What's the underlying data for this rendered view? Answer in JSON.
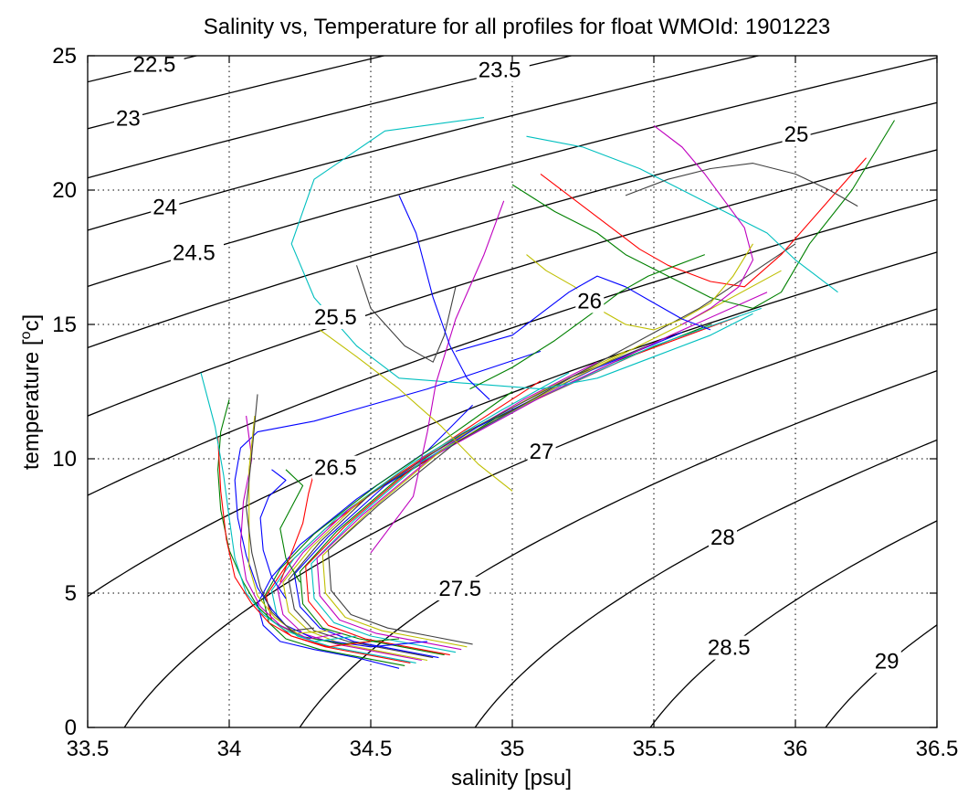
{
  "chart_data": {
    "type": "line",
    "title": "Salinity vs, Temperature for all profiles for float WMOId: 1901223",
    "xlabel": "salinity [psu]",
    "ylabel_parts": {
      "before": "temperature [",
      "sup": "o",
      "after": "c]"
    },
    "xlim": [
      33.5,
      36.5
    ],
    "ylim": [
      0,
      25
    ],
    "xticks": [
      33.5,
      34,
      34.5,
      35,
      35.5,
      36,
      36.5
    ],
    "xtick_labels": [
      "33.5",
      "34",
      "34.5",
      "35",
      "35.5",
      "36",
      "36.5"
    ],
    "yticks": [
      0,
      5,
      10,
      15,
      20,
      25
    ],
    "ytick_labels": [
      "0",
      "5",
      "10",
      "15",
      "20",
      "25"
    ],
    "grid": true,
    "contours": {
      "kind": "sigma0 density isolines",
      "levels": [
        22.5,
        23,
        23.5,
        24,
        24.5,
        25,
        25.5,
        26,
        26.5,
        27,
        27.5,
        28,
        28.5,
        29
      ],
      "labels": [
        {
          "text": "22.5",
          "s": 33.66,
          "t": 24.4
        },
        {
          "text": "23",
          "s": 33.6,
          "t": 22.4
        },
        {
          "text": "23.5",
          "s": 34.88,
          "t": 24.2
        },
        {
          "text": "24",
          "s": 33.73,
          "t": 19.1
        },
        {
          "text": "24.5",
          "s": 33.8,
          "t": 17.4
        },
        {
          "text": "25",
          "s": 35.96,
          "t": 21.8
        },
        {
          "text": "25.5",
          "s": 34.3,
          "t": 15.0
        },
        {
          "text": "26",
          "s": 35.23,
          "t": 15.6
        },
        {
          "text": "26.5",
          "s": 34.3,
          "t": 9.4
        },
        {
          "text": "27",
          "s": 35.06,
          "t": 10.0
        },
        {
          "text": "27.5",
          "s": 34.74,
          "t": 4.9
        },
        {
          "text": "28",
          "s": 35.7,
          "t": 6.8
        },
        {
          "text": "28.5",
          "s": 35.69,
          "t": 2.7
        },
        {
          "text": "29",
          "s": 36.28,
          "t": 2.2
        }
      ]
    },
    "series_colors": [
      "#0000ff",
      "#008000",
      "#ff0000",
      "#00bfbf",
      "#bf00bf",
      "#bfbf00",
      "#404040"
    ],
    "series": [
      {
        "x": [
          34.6,
          34.45,
          34.3,
          34.18,
          34.12,
          34.1,
          34.15,
          34.25,
          34.45,
          34.7,
          34.86
        ],
        "y": [
          2.2,
          2.6,
          2.9,
          3.2,
          3.8,
          4.6,
          5.6,
          6.8,
          8.5,
          10.3,
          12.0
        ]
      },
      {
        "x": [
          34.62,
          34.47,
          34.32,
          34.2,
          34.14,
          34.12,
          34.18,
          34.3,
          34.52,
          34.8,
          35.0
        ],
        "y": [
          2.3,
          2.6,
          2.9,
          3.3,
          3.9,
          4.8,
          5.9,
          7.2,
          9.0,
          11.0,
          12.5
        ]
      },
      {
        "x": [
          34.64,
          34.49,
          34.34,
          34.22,
          34.15,
          34.13,
          34.2,
          34.34,
          34.58,
          34.88,
          35.1
        ],
        "y": [
          2.4,
          2.7,
          3.0,
          3.4,
          4.0,
          4.9,
          6.0,
          7.4,
          9.3,
          11.4,
          12.9
        ]
      },
      {
        "x": [
          34.66,
          34.51,
          34.36,
          34.24,
          34.17,
          34.15,
          34.23,
          34.38,
          34.64,
          34.96,
          35.2
        ],
        "y": [
          2.4,
          2.7,
          3.0,
          3.4,
          4.1,
          5.1,
          6.3,
          7.8,
          9.8,
          11.8,
          13.2
        ]
      },
      {
        "x": [
          34.68,
          34.53,
          34.38,
          34.26,
          34.19,
          34.17,
          34.26,
          34.42,
          34.7,
          35.04,
          35.3
        ],
        "y": [
          2.5,
          2.8,
          3.1,
          3.5,
          4.2,
          5.2,
          6.5,
          8.1,
          10.1,
          12.2,
          13.6
        ]
      },
      {
        "x": [
          34.7,
          34.55,
          34.4,
          34.28,
          34.21,
          34.19,
          34.29,
          34.46,
          34.76,
          35.12,
          35.4
        ],
        "y": [
          2.5,
          2.8,
          3.1,
          3.6,
          4.3,
          5.4,
          6.7,
          8.4,
          10.5,
          12.6,
          14.0
        ]
      },
      {
        "x": [
          34.72,
          34.57,
          34.42,
          34.3,
          34.23,
          34.21,
          34.32,
          34.5,
          34.82,
          35.2,
          35.5
        ],
        "y": [
          2.6,
          2.9,
          3.2,
          3.6,
          4.4,
          5.5,
          6.9,
          8.7,
          10.9,
          13.0,
          14.3
        ]
      },
      {
        "x": [
          34.74,
          34.59,
          34.44,
          34.32,
          34.25,
          34.23,
          34.35,
          34.55,
          34.88,
          35.28,
          35.6
        ],
        "y": [
          2.6,
          2.9,
          3.2,
          3.7,
          4.5,
          5.7,
          7.1,
          9.0,
          11.2,
          13.3,
          14.7
        ]
      },
      {
        "x": [
          34.76,
          34.61,
          34.46,
          34.33,
          34.26,
          34.25,
          34.38,
          34.6,
          34.94,
          35.36,
          35.7
        ],
        "y": [
          2.7,
          3.0,
          3.3,
          3.7,
          4.6,
          5.8,
          7.3,
          9.3,
          11.5,
          13.6,
          15.0
        ]
      },
      {
        "x": [
          34.78,
          34.63,
          34.48,
          34.35,
          34.28,
          34.27,
          34.41,
          34.64,
          35.0,
          35.44,
          35.8
        ],
        "y": [
          2.7,
          3.0,
          3.3,
          3.8,
          4.7,
          6.0,
          7.5,
          9.6,
          11.8,
          13.9,
          15.3
        ]
      },
      {
        "x": [
          34.8,
          34.65,
          34.5,
          34.37,
          34.3,
          34.29,
          34.44,
          34.68,
          35.06,
          35.5,
          35.88
        ],
        "y": [
          2.8,
          3.1,
          3.4,
          3.9,
          4.8,
          6.1,
          7.7,
          9.9,
          12.1,
          14.2,
          15.6
        ]
      },
      {
        "x": [
          34.82,
          34.67,
          34.52,
          34.39,
          34.32,
          34.31,
          34.47,
          34.72,
          35.12,
          35.56,
          35.9
        ],
        "y": [
          2.9,
          3.2,
          3.5,
          4.0,
          4.9,
          6.3,
          7.9,
          10.1,
          12.4,
          14.6,
          16.2
        ]
      },
      {
        "x": [
          34.84,
          34.69,
          34.54,
          34.41,
          34.34,
          34.33,
          34.5,
          34.76,
          35.18,
          35.6,
          35.95
        ],
        "y": [
          3.0,
          3.3,
          3.6,
          4.1,
          5.0,
          6.4,
          8.1,
          10.4,
          12.8,
          15.0,
          17.0
        ]
      },
      {
        "x": [
          34.86,
          34.71,
          34.56,
          34.43,
          34.36,
          34.35,
          34.53,
          34.8,
          35.22,
          35.66,
          36.0
        ],
        "y": [
          3.1,
          3.4,
          3.7,
          4.2,
          5.1,
          6.6,
          8.3,
          10.6,
          13.1,
          15.6,
          18.0
        ]
      },
      {
        "x": [
          34.7,
          34.5,
          34.3,
          34.2,
          34.15,
          34.1,
          34.06,
          34.03,
          34.02,
          34.04,
          34.1,
          34.3,
          34.7,
          35.1
        ],
        "y": [
          3.2,
          3.0,
          3.3,
          3.8,
          4.4,
          5.2,
          6.4,
          7.8,
          9.2,
          10.4,
          11.0,
          11.4,
          12.6,
          14.0
        ]
      },
      {
        "x": [
          34.6,
          34.4,
          34.25,
          34.16,
          34.1,
          34.05,
          34.0,
          33.97,
          33.96,
          33.97,
          34.0
        ],
        "y": [
          3.3,
          3.1,
          3.4,
          3.9,
          4.5,
          5.4,
          6.6,
          8.1,
          9.6,
          11.0,
          12.2
        ]
      },
      {
        "x": [
          34.5,
          34.35,
          34.22,
          34.14,
          34.08,
          34.02,
          33.99,
          33.97,
          33.96
        ],
        "y": [
          3.2,
          3.0,
          3.4,
          3.9,
          4.6,
          5.6,
          7.0,
          8.8,
          10.8
        ]
      },
      {
        "x": [
          34.45,
          34.3,
          34.2,
          34.12,
          34.06,
          34.02,
          34.0,
          33.98,
          33.95,
          33.9
        ],
        "y": [
          3.4,
          3.2,
          3.6,
          4.2,
          5.0,
          6.3,
          7.8,
          9.4,
          11.2,
          13.2
        ]
      },
      {
        "x": [
          34.4,
          34.28,
          34.18,
          34.11,
          34.06,
          34.04,
          34.05,
          34.08,
          34.06
        ],
        "y": [
          3.5,
          3.3,
          3.8,
          4.5,
          5.5,
          6.8,
          8.4,
          10.0,
          11.6
        ]
      },
      {
        "x": [
          34.35,
          34.24,
          34.16,
          34.1,
          34.07,
          34.07,
          34.07,
          34.09
        ],
        "y": [
          3.6,
          3.5,
          4.1,
          4.9,
          6.0,
          7.6,
          9.6,
          11.6
        ]
      },
      {
        "x": [
          34.3,
          34.22,
          34.15,
          34.11,
          34.08,
          34.06,
          34.08,
          34.1
        ],
        "y": [
          3.7,
          3.6,
          4.3,
          5.2,
          6.5,
          8.2,
          10.2,
          12.4
        ]
      },
      {
        "x": [
          34.2,
          34.15,
          34.12,
          34.11,
          34.14,
          34.2,
          34.15
        ],
        "y": [
          4.8,
          5.6,
          6.6,
          7.8,
          8.6,
          9.2,
          9.6
        ]
      },
      {
        "x": [
          34.25,
          34.2,
          34.18,
          34.22,
          34.26,
          34.2
        ],
        "y": [
          5.4,
          6.3,
          7.4,
          8.2,
          9.0,
          9.6
        ]
      },
      {
        "x": [
          34.18,
          34.22,
          34.26,
          34.28,
          34.3,
          34.34,
          34.4
        ],
        "y": [
          5.4,
          6.5,
          7.6,
          8.7,
          9.5,
          9.4,
          9.3
        ]
      },
      {
        "x": [
          34.9,
          34.55,
          34.3,
          34.22,
          34.3,
          34.45,
          34.6,
          34.85,
          35.1,
          35.3,
          35.5,
          35.7,
          35.85
        ],
        "y": [
          22.7,
          22.2,
          20.4,
          18.0,
          16.0,
          14.2,
          13.0,
          12.8,
          12.6,
          13.0,
          13.8,
          14.6,
          15.4
        ]
      },
      {
        "x": [
          34.5,
          34.65,
          34.7,
          34.73,
          34.8,
          34.9,
          34.97
        ],
        "y": [
          6.5,
          8.6,
          11.0,
          12.8,
          15.2,
          17.6,
          19.6
        ]
      },
      {
        "x": [
          34.32,
          34.45,
          34.6,
          34.75,
          34.88,
          35.0
        ],
        "y": [
          14.8,
          13.8,
          12.6,
          11.2,
          9.8,
          8.8
        ]
      },
      {
        "x": [
          34.45,
          34.5,
          34.62,
          34.72,
          34.76,
          34.8
        ],
        "y": [
          17.2,
          15.6,
          14.2,
          13.6,
          14.6,
          16.4
        ]
      },
      {
        "x": [
          34.6,
          34.66,
          34.72,
          34.78,
          34.84,
          34.92
        ],
        "y": [
          19.8,
          18.4,
          16.0,
          14.2,
          13.0,
          12.2
        ]
      },
      {
        "x": [
          35.0,
          35.15,
          35.3,
          35.4,
          35.55,
          35.7,
          35.85,
          35.95,
          36.05,
          36.2,
          36.35
        ],
        "y": [
          20.2,
          19.2,
          18.4,
          17.6,
          16.8,
          16.0,
          15.6,
          16.2,
          18.0,
          20.0,
          22.6
        ]
      },
      {
        "x": [
          35.1,
          35.2,
          35.35,
          35.45,
          35.55,
          35.7,
          35.82,
          35.95,
          36.1,
          36.25
        ],
        "y": [
          20.6,
          19.8,
          18.6,
          17.8,
          17.2,
          16.6,
          16.4,
          17.6,
          19.4,
          21.2
        ]
      },
      {
        "x": [
          35.05,
          35.25,
          35.45,
          35.6,
          35.75,
          35.9,
          36.0,
          36.15
        ],
        "y": [
          22.0,
          21.6,
          20.8,
          20.0,
          19.2,
          18.4,
          17.4,
          16.2
        ]
      },
      {
        "x": [
          35.5,
          35.6,
          35.68,
          35.75,
          35.82,
          35.85,
          35.8,
          35.7,
          35.6
        ],
        "y": [
          22.4,
          21.6,
          20.6,
          19.6,
          18.6,
          17.4,
          16.4,
          15.6,
          15.0
        ]
      },
      {
        "x": [
          35.05,
          35.12,
          35.22,
          35.3,
          35.4,
          35.5,
          35.6,
          35.7,
          35.78,
          35.85
        ],
        "y": [
          17.6,
          17.0,
          16.4,
          15.6,
          15.0,
          14.8,
          15.2,
          15.8,
          16.8,
          18.0
        ]
      },
      {
        "x": [
          35.4,
          35.55,
          35.7,
          35.85,
          36.0,
          36.12,
          36.22
        ],
        "y": [
          19.8,
          20.4,
          20.8,
          21.0,
          20.6,
          20.0,
          19.4
        ]
      },
      {
        "x": [
          34.8,
          35.0,
          35.1,
          35.2,
          35.3,
          35.4,
          35.5,
          35.6,
          35.7
        ],
        "y": [
          14.0,
          14.6,
          15.4,
          16.2,
          16.8,
          16.4,
          15.8,
          15.2,
          14.8
        ]
      },
      {
        "x": [
          34.85,
          35.0,
          35.15,
          35.28,
          35.38,
          35.48,
          35.58,
          35.68
        ],
        "y": [
          12.6,
          13.4,
          14.4,
          15.4,
          16.2,
          16.8,
          17.2,
          17.6
        ]
      }
    ]
  }
}
